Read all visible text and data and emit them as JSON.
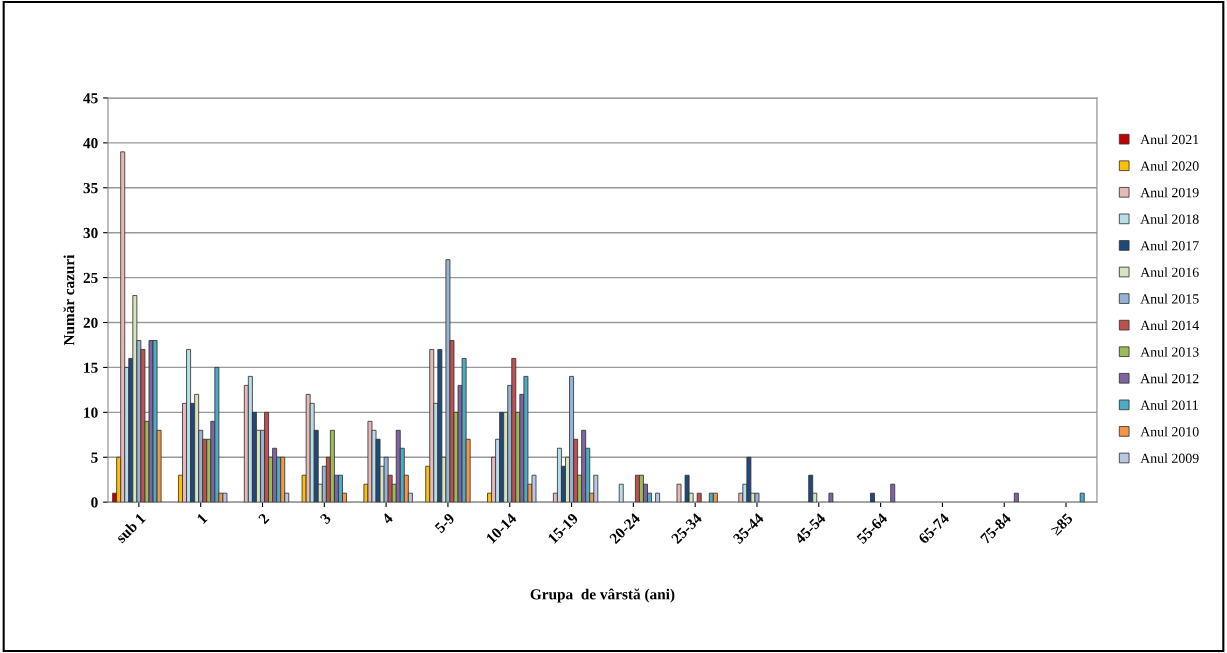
{
  "chart_data": {
    "type": "bar",
    "xlabel": "Grupa  de vârstă (ani)",
    "ylabel": "Număr cazuri",
    "categories": [
      "sub 1",
      "1",
      "2",
      "3",
      "4",
      "5-9",
      "10-14",
      "15-19",
      "20-24",
      "25-34",
      "35-44",
      "45-54",
      "55-64",
      "65-74",
      "75-84",
      "≥85"
    ],
    "ylim": [
      0,
      45
    ],
    "yticks": [
      0,
      5,
      10,
      15,
      20,
      25,
      30,
      35,
      40,
      45
    ],
    "grid": "y",
    "legend": "right",
    "series": [
      {
        "name": "Anul 2021",
        "color": "#c00000",
        "values": [
          1,
          null,
          null,
          null,
          null,
          null,
          null,
          null,
          null,
          null,
          null,
          null,
          null,
          null,
          null,
          null
        ]
      },
      {
        "name": "Anul 2020",
        "color": "#ffc000",
        "values": [
          5,
          3,
          null,
          3,
          2,
          4,
          1,
          null,
          null,
          null,
          null,
          null,
          null,
          null,
          null,
          null
        ]
      },
      {
        "name": "Anul 2019",
        "color": "#e6b9b8",
        "values": [
          39,
          11,
          13,
          12,
          9,
          17,
          5,
          1,
          null,
          2,
          1,
          null,
          null,
          null,
          null,
          null
        ]
      },
      {
        "name": "Anul 2018",
        "color": "#b7dee8",
        "values": [
          15,
          17,
          14,
          11,
          8,
          11,
          7,
          6,
          2,
          null,
          2,
          null,
          null,
          null,
          null,
          null
        ]
      },
      {
        "name": "Anul 2017",
        "color": "#1f497d",
        "values": [
          16,
          11,
          10,
          8,
          7,
          17,
          10,
          4,
          null,
          3,
          5,
          3,
          1,
          null,
          null,
          null
        ]
      },
      {
        "name": "Anul 2016",
        "color": "#d7e4bd",
        "values": [
          23,
          12,
          8,
          2,
          4,
          5,
          10,
          5,
          null,
          1,
          1,
          1,
          null,
          null,
          null,
          null
        ]
      },
      {
        "name": "Anul 2015",
        "color": "#95b3d7",
        "values": [
          18,
          8,
          8,
          4,
          5,
          27,
          13,
          14,
          null,
          null,
          1,
          null,
          null,
          null,
          null,
          null
        ]
      },
      {
        "name": "Anul 2014",
        "color": "#c0504d",
        "values": [
          17,
          7,
          10,
          5,
          3,
          18,
          16,
          7,
          3,
          1,
          null,
          null,
          null,
          null,
          null,
          null
        ]
      },
      {
        "name": "Anul 2013",
        "color": "#9bbb59",
        "values": [
          9,
          7,
          5,
          8,
          2,
          10,
          10,
          3,
          3,
          null,
          null,
          null,
          null,
          null,
          null,
          null
        ]
      },
      {
        "name": "Anul 2012",
        "color": "#8064a2",
        "values": [
          18,
          9,
          6,
          3,
          8,
          13,
          12,
          8,
          2,
          null,
          null,
          1,
          2,
          null,
          1,
          null
        ]
      },
      {
        "name": "Anul 2011",
        "color": "#4bacc6",
        "values": [
          18,
          15,
          5,
          3,
          6,
          16,
          14,
          6,
          1,
          1,
          null,
          null,
          null,
          null,
          null,
          1
        ]
      },
      {
        "name": "Anul 2010",
        "color": "#f79646",
        "values": [
          8,
          1,
          5,
          1,
          3,
          7,
          2,
          1,
          null,
          1,
          null,
          null,
          null,
          null,
          null,
          null
        ]
      },
      {
        "name": "Anul 2009",
        "color": "#b9c7e4",
        "values": [
          null,
          1,
          1,
          null,
          1,
          null,
          3,
          3,
          1,
          null,
          null,
          null,
          null,
          null,
          null,
          null
        ]
      }
    ]
  }
}
